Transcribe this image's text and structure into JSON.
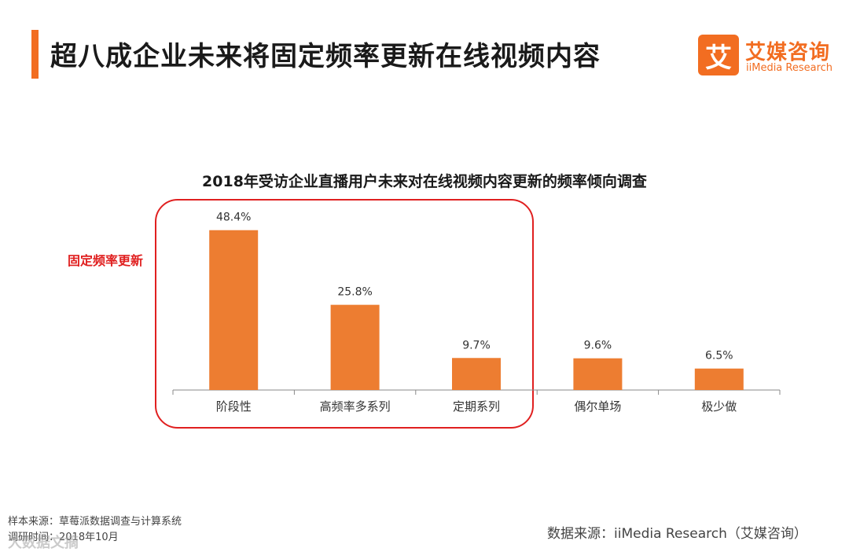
{
  "header": {
    "title": "超八成企业未来将固定频率更新在线视频内容",
    "logo_char": "艾",
    "logo_cn": "艾媒咨询",
    "logo_en": "iiMedia Research"
  },
  "highlight": {
    "label": "固定频率更新"
  },
  "footer": {
    "sample_source": "样本来源：草莓派数据调查与计算系统",
    "survey_time": "调研时间：2018年10月",
    "data_source": "数据来源：iiMedia Research（艾媒咨询）",
    "watermark": "大数据文摘"
  },
  "colors": {
    "accent": "#f26d21",
    "bar": "#ed7d31",
    "highlight": "#e02020",
    "axis": "#888888"
  },
  "chart_data": {
    "type": "bar",
    "title": "2018年受访企业直播用户未来对在线视频内容更新的频率倾向调查",
    "categories": [
      "阶段性",
      "高频率多系列",
      "定期系列",
      "偶尔单场",
      "极少做"
    ],
    "values": [
      48.4,
      25.8,
      9.7,
      9.6,
      6.5
    ],
    "value_labels": [
      "48.4%",
      "25.8%",
      "9.7%",
      "9.6%",
      "6.5%"
    ],
    "unit": "%",
    "xlabel": "",
    "ylabel": "",
    "grid": false,
    "legend": "none",
    "highlighted_categories": [
      "阶段性",
      "高频率多系列",
      "定期系列"
    ]
  }
}
